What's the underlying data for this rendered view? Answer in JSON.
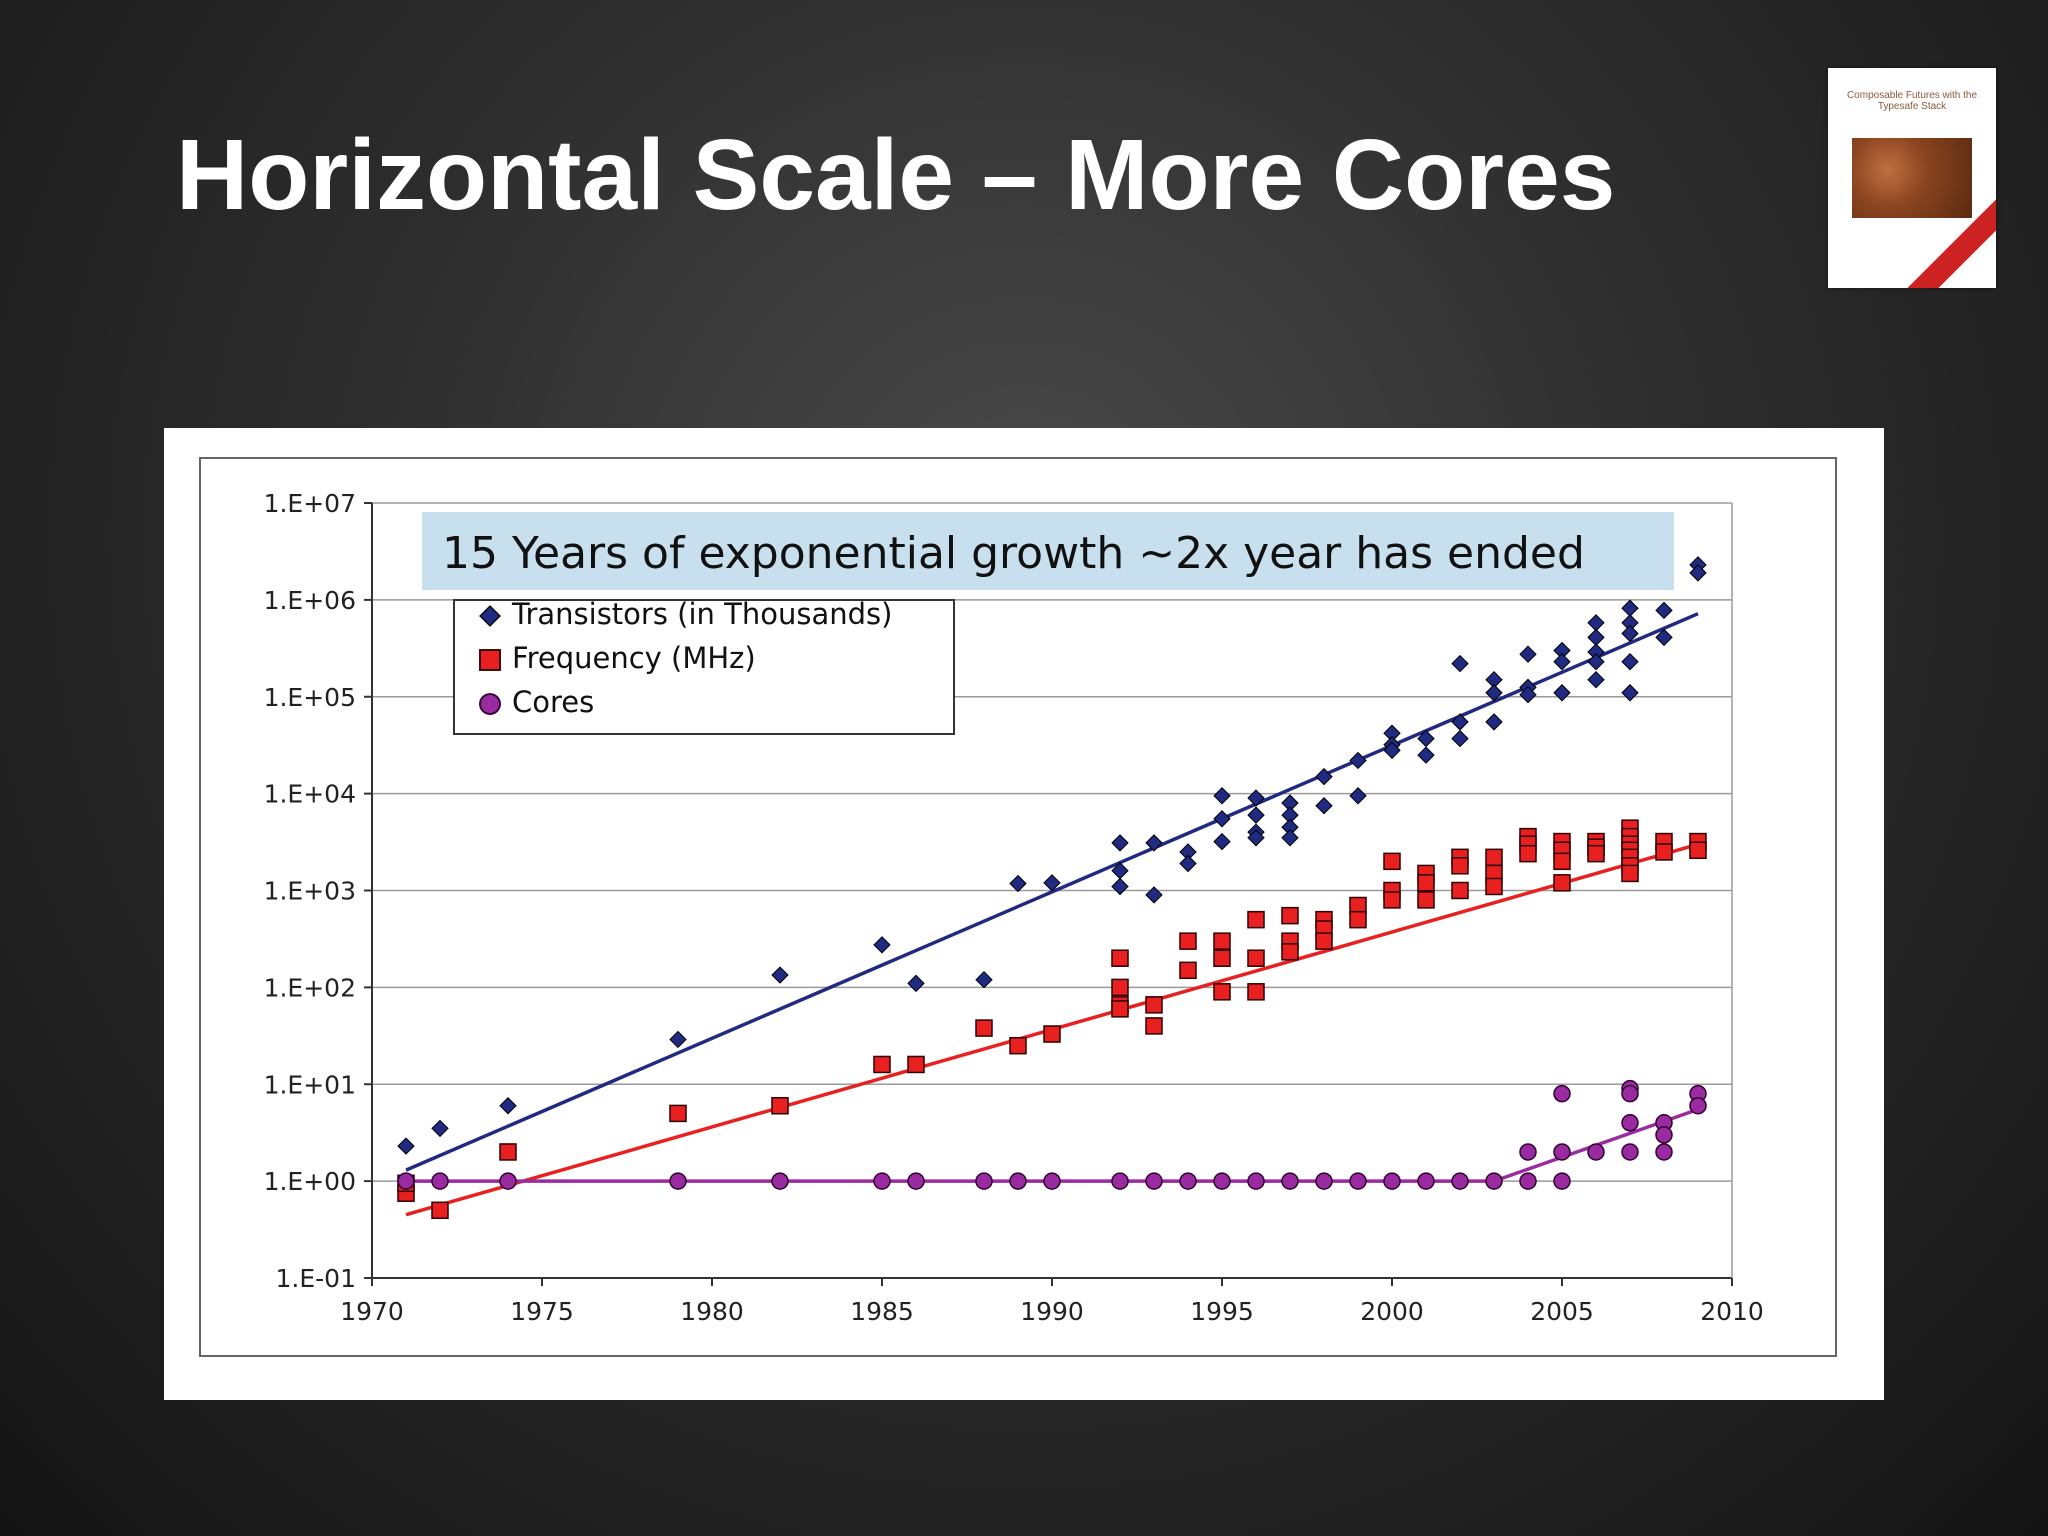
{
  "slide": {
    "title": "Horizontal Scale – More Cores"
  },
  "book": {
    "title": "Composable Futures with the Typesafe Stack"
  },
  "colors": {
    "transistors": "#1f2a80",
    "frequency": "#e82020",
    "cores": "#9a2aa0",
    "banner": "#c8e0ee"
  },
  "chart_data": {
    "type": "scatter",
    "title": "15 Years of exponential growth ~2x year has ended",
    "xlabel": "",
    "ylabel": "",
    "xlim": [
      1970,
      2010
    ],
    "ylim": [
      0.1,
      10000000
    ],
    "y_scale": "log",
    "x_ticks": [
      "1970",
      "1975",
      "1980",
      "1985",
      "1990",
      "1995",
      "2000",
      "2005",
      "2010"
    ],
    "y_ticks": [
      "1.E-01",
      "1.E+00",
      "1.E+01",
      "1.E+02",
      "1.E+03",
      "1.E+04",
      "1.E+05",
      "1.E+06",
      "1.E+07"
    ],
    "grid": "horizontal",
    "legend_position": "top-left",
    "series": [
      {
        "name": "Transistors (in Thousands)",
        "marker": "diamond",
        "points": [
          [
            1971,
            2.3
          ],
          [
            1972,
            3.5
          ],
          [
            1974,
            6
          ],
          [
            1979,
            29
          ],
          [
            1982,
            134
          ],
          [
            1985,
            275
          ],
          [
            1986,
            110
          ],
          [
            1988,
            120
          ],
          [
            1989,
            1180
          ],
          [
            1990,
            1200
          ],
          [
            1992,
            3100
          ],
          [
            1992,
            1600
          ],
          [
            1992,
            1100
          ],
          [
            1993,
            3100
          ],
          [
            1993,
            900
          ],
          [
            1994,
            2500
          ],
          [
            1994,
            1900
          ],
          [
            1995,
            9500
          ],
          [
            1995,
            5500
          ],
          [
            1995,
            3200
          ],
          [
            1996,
            9000
          ],
          [
            1996,
            6000
          ],
          [
            1996,
            4000
          ],
          [
            1996,
            3500
          ],
          [
            1997,
            8000
          ],
          [
            1997,
            6000
          ],
          [
            1997,
            4500
          ],
          [
            1997,
            3500
          ],
          [
            1998,
            15000
          ],
          [
            1998,
            7500
          ],
          [
            1999,
            22000
          ],
          [
            1999,
            9500
          ],
          [
            2000,
            42000
          ],
          [
            2000,
            32000
          ],
          [
            2000,
            28000
          ],
          [
            2001,
            37000
          ],
          [
            2001,
            25000
          ],
          [
            2002,
            220000
          ],
          [
            2002,
            55000
          ],
          [
            2002,
            37000
          ],
          [
            2003,
            150000
          ],
          [
            2003,
            110000
          ],
          [
            2003,
            55000
          ],
          [
            2004,
            275000
          ],
          [
            2004,
            125000
          ],
          [
            2004,
            105000
          ],
          [
            2005,
            300000
          ],
          [
            2005,
            230000
          ],
          [
            2005,
            110000
          ],
          [
            2006,
            580000
          ],
          [
            2006,
            410000
          ],
          [
            2006,
            290000
          ],
          [
            2006,
            230000
          ],
          [
            2006,
            150000
          ],
          [
            2007,
            820000
          ],
          [
            2007,
            580000
          ],
          [
            2007,
            450000
          ],
          [
            2007,
            230000
          ],
          [
            2007,
            110000
          ],
          [
            2008,
            780000
          ],
          [
            2008,
            410000
          ],
          [
            2009,
            2300000
          ],
          [
            2009,
            1900000
          ]
        ],
        "trend": [
          [
            1971,
            1.3
          ],
          [
            2009,
            720000
          ]
        ]
      },
      {
        "name": "Frequency (MHz)",
        "marker": "square",
        "points": [
          [
            1971,
            0.75
          ],
          [
            1971,
            0.95
          ],
          [
            1972,
            0.5
          ],
          [
            1974,
            2
          ],
          [
            1979,
            5
          ],
          [
            1982,
            6
          ],
          [
            1985,
            16
          ],
          [
            1986,
            16
          ],
          [
            1988,
            38
          ],
          [
            1989,
            25
          ],
          [
            1990,
            33
          ],
          [
            1992,
            200
          ],
          [
            1992,
            100
          ],
          [
            1992,
            66
          ],
          [
            1992,
            60
          ],
          [
            1993,
            66
          ],
          [
            1993,
            40
          ],
          [
            1994,
            300
          ],
          [
            1994,
            150
          ],
          [
            1995,
            300
          ],
          [
            1995,
            200
          ],
          [
            1995,
            90
          ],
          [
            1996,
            500
          ],
          [
            1996,
            200
          ],
          [
            1996,
            90
          ],
          [
            1997,
            550
          ],
          [
            1997,
            300
          ],
          [
            1997,
            233
          ],
          [
            1998,
            500
          ],
          [
            1998,
            400
          ],
          [
            1998,
            300
          ],
          [
            1999,
            700
          ],
          [
            1999,
            500
          ],
          [
            2000,
            2000
          ],
          [
            2000,
            1000
          ],
          [
            2000,
            800
          ],
          [
            2001,
            1500
          ],
          [
            2001,
            1200
          ],
          [
            2001,
            800
          ],
          [
            2002,
            2200
          ],
          [
            2002,
            1800
          ],
          [
            2002,
            1000
          ],
          [
            2003,
            2200
          ],
          [
            2003,
            1500
          ],
          [
            2003,
            1100
          ],
          [
            2004,
            3600
          ],
          [
            2004,
            3000
          ],
          [
            2004,
            2400
          ],
          [
            2005,
            3200
          ],
          [
            2005,
            2600
          ],
          [
            2005,
            2000
          ],
          [
            2005,
            1200
          ],
          [
            2006,
            3200
          ],
          [
            2006,
            2800
          ],
          [
            2006,
            2400
          ],
          [
            2007,
            4400
          ],
          [
            2007,
            3600
          ],
          [
            2007,
            3000
          ],
          [
            2007,
            2600
          ],
          [
            2007,
            2200
          ],
          [
            2007,
            1800
          ],
          [
            2007,
            1500
          ],
          [
            2008,
            3200
          ],
          [
            2008,
            2500
          ],
          [
            2009,
            3200
          ],
          [
            2009,
            2600
          ]
        ],
        "trend": [
          [
            1971,
            0.45
          ],
          [
            2009,
            3000
          ]
        ]
      },
      {
        "name": "Cores",
        "marker": "circle",
        "points": [
          [
            1971,
            1
          ],
          [
            1972,
            1
          ],
          [
            1974,
            1
          ],
          [
            1979,
            1
          ],
          [
            1982,
            1
          ],
          [
            1985,
            1
          ],
          [
            1986,
            1
          ],
          [
            1988,
            1
          ],
          [
            1989,
            1
          ],
          [
            1990,
            1
          ],
          [
            1992,
            1
          ],
          [
            1993,
            1
          ],
          [
            1994,
            1
          ],
          [
            1995,
            1
          ],
          [
            1996,
            1
          ],
          [
            1997,
            1
          ],
          [
            1998,
            1
          ],
          [
            1999,
            1
          ],
          [
            2000,
            1
          ],
          [
            2001,
            1
          ],
          [
            2002,
            1
          ],
          [
            2003,
            1
          ],
          [
            2004,
            2
          ],
          [
            2004,
            1
          ],
          [
            2005,
            8
          ],
          [
            2005,
            2
          ],
          [
            2005,
            1
          ],
          [
            2006,
            2
          ],
          [
            2007,
            9
          ],
          [
            2007,
            8
          ],
          [
            2007,
            4
          ],
          [
            2007,
            2
          ],
          [
            2008,
            4
          ],
          [
            2008,
            3
          ],
          [
            2008,
            2
          ],
          [
            2009,
            8
          ],
          [
            2009,
            6
          ]
        ],
        "trend": [
          [
            1971,
            1
          ],
          [
            2003,
            1
          ],
          [
            2009,
            5.5
          ]
        ]
      }
    ]
  }
}
